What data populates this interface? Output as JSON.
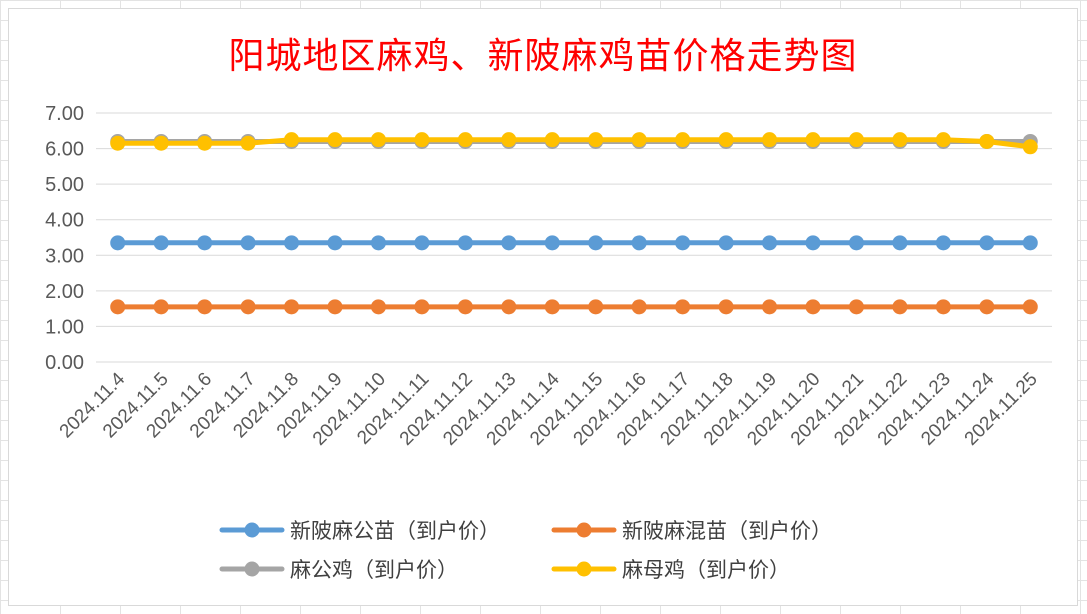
{
  "chart_data": {
    "type": "line",
    "title": "阳城地区麻鸡、新陂麻鸡苗价格走势图",
    "categories": [
      "2024.11.4",
      "2024.11.5",
      "2024.11.6",
      "2024.11.7",
      "2024.11.8",
      "2024.11.9",
      "2024.11.10",
      "2024.11.11",
      "2024.11.12",
      "2024.11.13",
      "2024.11.14",
      "2024.11.15",
      "2024.11.16",
      "2024.11.17",
      "2024.11.18",
      "2024.11.19",
      "2024.11.20",
      "2024.11.21",
      "2024.11.22",
      "2024.11.23",
      "2024.11.24",
      "2024.11.25"
    ],
    "ylim": [
      0,
      7
    ],
    "yticks": [
      "0.00",
      "1.00",
      "2.00",
      "3.00",
      "4.00",
      "5.00",
      "6.00",
      "7.00"
    ],
    "grid": true,
    "legend_position": "bottom",
    "series": [
      {
        "name": "新陂麻公苗（到户价）",
        "color": "#5b9bd5",
        "values": [
          3.35,
          3.35,
          3.35,
          3.35,
          3.35,
          3.35,
          3.35,
          3.35,
          3.35,
          3.35,
          3.35,
          3.35,
          3.35,
          3.35,
          3.35,
          3.35,
          3.35,
          3.35,
          3.35,
          3.35,
          3.35,
          3.35
        ]
      },
      {
        "name": "新陂麻混苗（到户价）",
        "color": "#ed7d31",
        "values": [
          1.55,
          1.55,
          1.55,
          1.55,
          1.55,
          1.55,
          1.55,
          1.55,
          1.55,
          1.55,
          1.55,
          1.55,
          1.55,
          1.55,
          1.55,
          1.55,
          1.55,
          1.55,
          1.55,
          1.55,
          1.55,
          1.55
        ]
      },
      {
        "name": "麻公鸡（到户价）",
        "color": "#a5a5a5",
        "values": [
          6.2,
          6.2,
          6.2,
          6.2,
          6.2,
          6.2,
          6.2,
          6.2,
          6.2,
          6.2,
          6.2,
          6.2,
          6.2,
          6.2,
          6.2,
          6.2,
          6.2,
          6.2,
          6.2,
          6.2,
          6.2,
          6.2
        ]
      },
      {
        "name": "麻母鸡（到户价）",
        "color": "#ffc000",
        "values": [
          6.15,
          6.15,
          6.15,
          6.15,
          6.25,
          6.25,
          6.25,
          6.25,
          6.25,
          6.25,
          6.25,
          6.25,
          6.25,
          6.25,
          6.25,
          6.25,
          6.25,
          6.25,
          6.25,
          6.25,
          6.2,
          6.05
        ]
      }
    ]
  }
}
